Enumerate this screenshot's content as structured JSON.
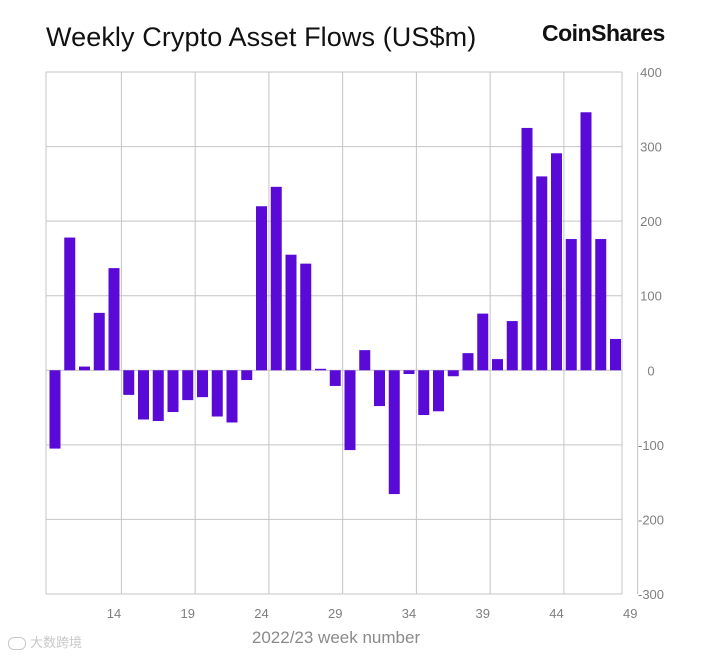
{
  "title": "Weekly Crypto Asset Flows (US$m)",
  "brand": "CoinShares",
  "watermark": "大数跨境",
  "chart_data": {
    "type": "bar",
    "title": "Weekly Crypto Asset Flows (US$m)",
    "xlabel": "2022/23 week number",
    "ylabel": "",
    "ylim": [
      -300,
      400
    ],
    "yticks": [
      400,
      300,
      200,
      100,
      0,
      -100,
      -200,
      -300
    ],
    "ytick_labels": [
      "400",
      "300",
      "200",
      "100",
      "0",
      "-100",
      "-200",
      "-300"
    ],
    "y_axis_side": "right",
    "xtick_labels": [
      "14",
      "19",
      "24",
      "29",
      "34",
      "39",
      "44",
      "49"
    ],
    "xtick_weeks": [
      14,
      19,
      24,
      29,
      34,
      39,
      44,
      49
    ],
    "gridlines": true,
    "bar_color": "#5a0ad6",
    "categories": [
      10,
      11,
      12,
      13,
      14,
      15,
      16,
      17,
      18,
      19,
      20,
      21,
      22,
      23,
      24,
      25,
      26,
      27,
      28,
      29,
      30,
      31,
      32,
      33,
      34,
      35,
      36,
      37,
      38,
      39,
      40,
      41,
      42,
      43,
      44,
      45,
      46,
      47,
      48,
      49
    ],
    "values": [
      -105,
      178,
      5,
      77,
      137,
      -33,
      -66,
      -68,
      -56,
      -40,
      -36,
      -62,
      -70,
      -13,
      220,
      246,
      155,
      143,
      2,
      -21,
      -107,
      27,
      -48,
      -166,
      -5,
      -60,
      -55,
      -8,
      23,
      76,
      15,
      66,
      325,
      260,
      291,
      176,
      346,
      176,
      42,
      0
    ]
  }
}
